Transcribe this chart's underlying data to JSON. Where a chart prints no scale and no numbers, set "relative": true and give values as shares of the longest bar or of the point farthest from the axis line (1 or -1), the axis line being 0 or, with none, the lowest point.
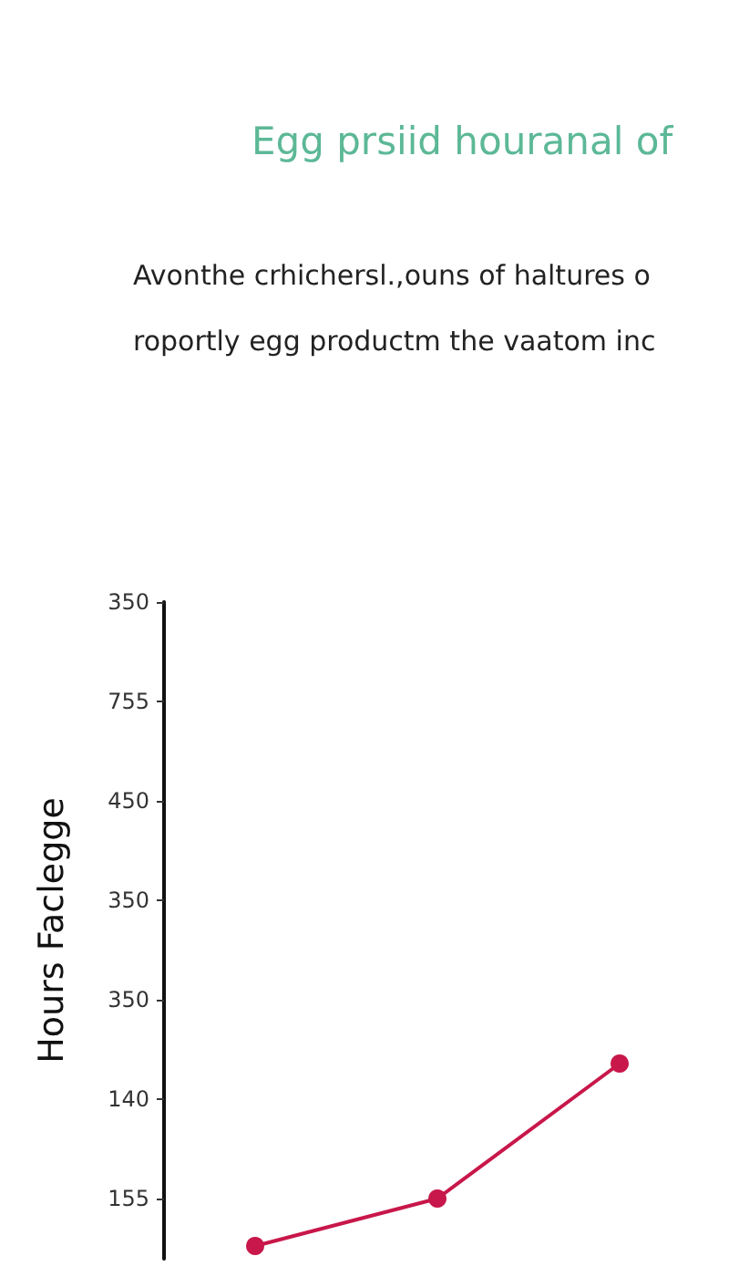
{
  "chart_data": {
    "type": "line",
    "title": "Egg prsiid houranal of",
    "subtitle": "Avonthe crhichersl.,ouns of haltures o roportly egg productm the vaatom inc",
    "ylabel": "Hours Faclegge",
    "annotations": [
      "350",
      "755",
      "450",
      "350",
      "350",
      "140",
      "155"
    ],
    "categories": [
      null,
      null,
      null
    ],
    "series": [
      {
        "color": "#c8174a",
        "values": [
          0,
          0.26,
          1
        ]
      }
    ],
    "relative": true,
    "grid": false,
    "marker": "circle",
    "line_style": "solid"
  }
}
